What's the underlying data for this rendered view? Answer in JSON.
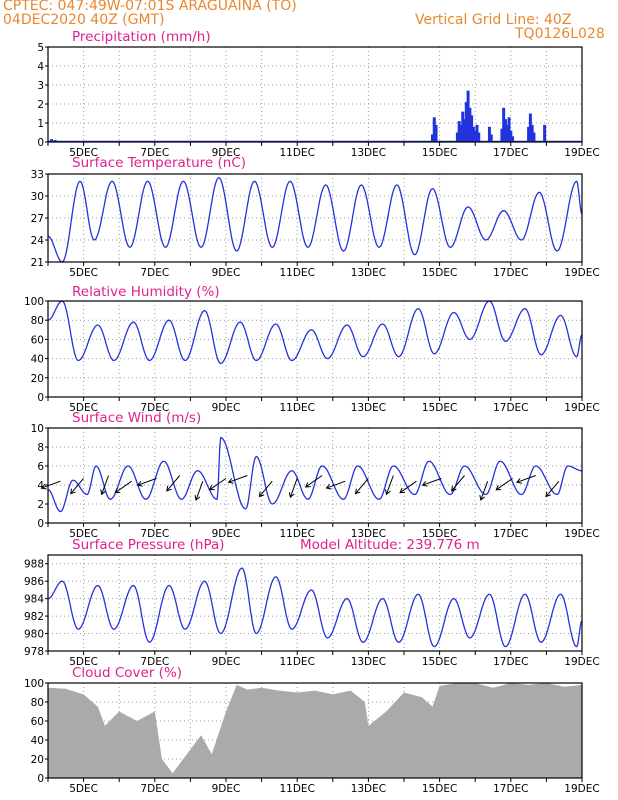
{
  "header": {
    "line1": "CPTEC:   047:49W-07:01S   ARAGUAINA (TO)",
    "line2_left": "04DEC2020 40Z (GMT)",
    "line2_right": "Vertical Grid Line: 40Z",
    "line3_right": "TQ0126L028"
  },
  "x_tick_labels": [
    "5DEC",
    "7DEC",
    "9DEC",
    "11DEC",
    "13DEC",
    "15DEC",
    "17DEC",
    "19DEC"
  ],
  "colors": {
    "line": "#2233dd",
    "bar": "#2233dd",
    "cloud": "#aaaaaa",
    "title": "#e0208f",
    "header": "#e8892e",
    "grid": "#9a9a9a"
  },
  "chart_data": [
    {
      "type": "bar",
      "title": "Precipitation (mm/h)",
      "ylim": [
        0,
        5
      ],
      "yticks": [
        0,
        1,
        2,
        3,
        4,
        5
      ],
      "x_unit": "day of December 2020",
      "xlim": [
        4.0,
        19.0
      ],
      "events": [
        {
          "x": 4.1,
          "value": 0.15
        },
        {
          "x": 4.2,
          "value": 0.1
        },
        {
          "x": 9.1,
          "value": 0.05
        },
        {
          "x": 14.8,
          "value": 0.4
        },
        {
          "x": 14.85,
          "value": 1.3
        },
        {
          "x": 14.9,
          "value": 0.9
        },
        {
          "x": 15.5,
          "value": 0.5
        },
        {
          "x": 15.55,
          "value": 1.1
        },
        {
          "x": 15.6,
          "value": 0.9
        },
        {
          "x": 15.65,
          "value": 1.6
        },
        {
          "x": 15.7,
          "value": 1.2
        },
        {
          "x": 15.75,
          "value": 2.1
        },
        {
          "x": 15.8,
          "value": 2.7
        },
        {
          "x": 15.85,
          "value": 1.8
        },
        {
          "x": 15.9,
          "value": 1.4
        },
        {
          "x": 15.95,
          "value": 0.8
        },
        {
          "x": 16.0,
          "value": 0.6
        },
        {
          "x": 16.05,
          "value": 0.9
        },
        {
          "x": 16.1,
          "value": 0.5
        },
        {
          "x": 16.4,
          "value": 0.8
        },
        {
          "x": 16.45,
          "value": 0.4
        },
        {
          "x": 16.75,
          "value": 0.7
        },
        {
          "x": 16.8,
          "value": 1.8
        },
        {
          "x": 16.85,
          "value": 1.2
        },
        {
          "x": 16.9,
          "value": 0.9
        },
        {
          "x": 16.95,
          "value": 1.3
        },
        {
          "x": 17.0,
          "value": 0.6
        },
        {
          "x": 17.05,
          "value": 0.3
        },
        {
          "x": 17.5,
          "value": 0.8
        },
        {
          "x": 17.55,
          "value": 1.5
        },
        {
          "x": 17.6,
          "value": 0.9
        },
        {
          "x": 17.65,
          "value": 0.5
        },
        {
          "x": 17.95,
          "value": 0.9
        }
      ]
    },
    {
      "type": "line",
      "title": "Surface Temperature (nC)",
      "ylim": [
        21,
        33
      ],
      "yticks": [
        21,
        24,
        27,
        30,
        33
      ],
      "x_unit": "day of December 2020",
      "xlim": [
        4.0,
        19.0
      ],
      "minima": [
        [
          4.0,
          24.5
        ],
        [
          4.4,
          21.0
        ],
        [
          5.3,
          24.0
        ],
        [
          6.3,
          23.0
        ],
        [
          7.3,
          23.0
        ],
        [
          8.3,
          23.0
        ],
        [
          9.3,
          22.5
        ],
        [
          10.3,
          23.0
        ],
        [
          11.3,
          23.0
        ],
        [
          12.3,
          22.5
        ],
        [
          13.3,
          23.0
        ],
        [
          14.3,
          22.0
        ],
        [
          15.3,
          23.0
        ],
        [
          16.3,
          24.0
        ],
        [
          17.3,
          24.0
        ],
        [
          18.3,
          22.5
        ],
        [
          19.0,
          27.5
        ]
      ],
      "maxima": [
        [
          4.9,
          32.0
        ],
        [
          5.8,
          32.0
        ],
        [
          6.8,
          32.0
        ],
        [
          7.8,
          32.0
        ],
        [
          8.8,
          32.5
        ],
        [
          9.8,
          32.0
        ],
        [
          10.8,
          32.0
        ],
        [
          11.8,
          31.5
        ],
        [
          12.8,
          31.5
        ],
        [
          13.8,
          31.5
        ],
        [
          14.8,
          31.0
        ],
        [
          15.8,
          28.5
        ],
        [
          16.8,
          28.0
        ],
        [
          17.8,
          30.5
        ],
        [
          18.85,
          32.0
        ]
      ]
    },
    {
      "type": "line",
      "title": "Relative Humidity (%)",
      "ylim": [
        0,
        100
      ],
      "yticks": [
        0,
        20,
        40,
        60,
        80,
        100
      ],
      "x_unit": "day of December 2020",
      "xlim": [
        4.0,
        19.0
      ],
      "minima": [
        [
          4.0,
          80.0
        ],
        [
          4.85,
          38.0
        ],
        [
          5.85,
          38.0
        ],
        [
          6.85,
          38.0
        ],
        [
          7.85,
          38.0
        ],
        [
          8.85,
          35.0
        ],
        [
          9.85,
          38.0
        ],
        [
          10.85,
          38.0
        ],
        [
          11.85,
          40.0
        ],
        [
          12.85,
          42.0
        ],
        [
          13.85,
          42.0
        ],
        [
          14.85,
          45.0
        ],
        [
          15.85,
          60.0
        ],
        [
          16.85,
          58.0
        ],
        [
          17.85,
          44.0
        ],
        [
          18.85,
          42.0
        ],
        [
          19.0,
          65.0
        ]
      ],
      "maxima": [
        [
          4.4,
          100.0
        ],
        [
          5.4,
          75.0
        ],
        [
          6.4,
          78.0
        ],
        [
          7.4,
          80.0
        ],
        [
          8.4,
          90.0
        ],
        [
          9.4,
          78.0
        ],
        [
          10.4,
          76.0
        ],
        [
          11.4,
          70.0
        ],
        [
          12.4,
          75.0
        ],
        [
          13.4,
          76.0
        ],
        [
          14.4,
          92.0
        ],
        [
          15.4,
          88.0
        ],
        [
          16.4,
          100.0
        ],
        [
          17.4,
          92.0
        ],
        [
          18.4,
          85.0
        ]
      ]
    },
    {
      "type": "line",
      "title": "Surface Wind (m/s)",
      "ylim": [
        0,
        10
      ],
      "yticks": [
        0,
        2,
        4,
        6,
        8,
        10
      ],
      "x_unit": "day of December 2020",
      "xlim": [
        4.0,
        19.0
      ],
      "minima": [
        [
          4.0,
          3.5
        ],
        [
          4.35,
          1.2
        ],
        [
          5.1,
          3.0
        ],
        [
          5.75,
          2.5
        ],
        [
          6.75,
          2.5
        ],
        [
          7.75,
          2.5
        ],
        [
          8.75,
          2.5
        ],
        [
          9.55,
          1.5
        ],
        [
          10.3,
          2.0
        ],
        [
          11.3,
          2.5
        ],
        [
          12.3,
          2.5
        ],
        [
          13.3,
          2.5
        ],
        [
          14.3,
          3.0
        ],
        [
          15.3,
          3.0
        ],
        [
          16.3,
          3.0
        ],
        [
          17.3,
          3.0
        ],
        [
          18.3,
          3.0
        ]
      ],
      "maxima": [
        [
          4.7,
          4.5
        ],
        [
          5.35,
          6.0
        ],
        [
          6.25,
          6.0
        ],
        [
          7.25,
          6.5
        ],
        [
          8.2,
          5.5
        ],
        [
          8.85,
          9.0
        ],
        [
          9.85,
          7.0
        ],
        [
          10.85,
          5.5
        ],
        [
          11.7,
          6.0
        ],
        [
          12.7,
          6.0
        ],
        [
          13.7,
          6.0
        ],
        [
          14.7,
          6.5
        ],
        [
          15.7,
          6.0
        ],
        [
          16.7,
          6.5
        ],
        [
          17.7,
          6.0
        ],
        [
          18.6,
          6.0
        ],
        [
          19.0,
          5.5
        ]
      ],
      "arrow_times": [
        4.35,
        5.0,
        5.7,
        6.35,
        7.05,
        7.7,
        8.35,
        9.0,
        9.6,
        10.3,
        11.0,
        11.7,
        12.35,
        13.0,
        13.7,
        14.35,
        15.05,
        15.7,
        16.35,
        17.05,
        17.7,
        18.35
      ],
      "arrow_directions_note": "wind barbs drawn in figure"
    },
    {
      "type": "line",
      "title": "Surface Pressure (hPa)",
      "annotation": "Model Altitude: 239.776 m",
      "ylim": [
        978,
        989
      ],
      "yticks": [
        978,
        980,
        982,
        984,
        986,
        988
      ],
      "x_unit": "day of December 2020",
      "xlim": [
        4.0,
        19.0
      ],
      "minima": [
        [
          4.0,
          984.0
        ],
        [
          4.85,
          980.5
        ],
        [
          5.85,
          980.5
        ],
        [
          6.85,
          979.0
        ],
        [
          7.85,
          980.5
        ],
        [
          8.85,
          980.0
        ],
        [
          9.85,
          980.0
        ],
        [
          10.85,
          980.5
        ],
        [
          11.85,
          979.5
        ],
        [
          12.85,
          979.0
        ],
        [
          13.85,
          979.0
        ],
        [
          14.85,
          978.5
        ],
        [
          15.85,
          979.5
        ],
        [
          16.85,
          978.5
        ],
        [
          17.85,
          979.0
        ],
        [
          18.85,
          978.5
        ],
        [
          19.0,
          981.5
        ]
      ],
      "maxima": [
        [
          4.4,
          986.0
        ],
        [
          5.4,
          985.5
        ],
        [
          6.4,
          985.5
        ],
        [
          7.4,
          985.5
        ],
        [
          8.4,
          986.0
        ],
        [
          9.45,
          987.5
        ],
        [
          10.4,
          986.5
        ],
        [
          11.4,
          985.0
        ],
        [
          12.4,
          984.0
        ],
        [
          13.4,
          984.0
        ],
        [
          14.4,
          984.5
        ],
        [
          15.4,
          984.0
        ],
        [
          16.4,
          984.5
        ],
        [
          17.4,
          984.5
        ],
        [
          18.4,
          984.5
        ]
      ]
    },
    {
      "type": "area",
      "title": "Cloud Cover (%)",
      "ylim": [
        0,
        100
      ],
      "yticks": [
        0,
        20,
        40,
        60,
        80,
        100
      ],
      "x_unit": "day of December 2020",
      "xlim": [
        4.0,
        19.0
      ],
      "x": [
        4.0,
        4.5,
        5.0,
        5.4,
        5.6,
        6.0,
        6.5,
        7.0,
        7.2,
        7.5,
        7.7,
        8.0,
        8.3,
        8.6,
        9.0,
        9.3,
        9.6,
        10.0,
        10.5,
        11.0,
        11.5,
        12.0,
        12.5,
        12.9,
        13.0,
        13.5,
        14.0,
        14.5,
        14.8,
        15.0,
        15.5,
        16.0,
        16.5,
        17.0,
        17.5,
        18.0,
        18.5,
        19.0
      ],
      "values": [
        95,
        94,
        88,
        75,
        55,
        70,
        60,
        70,
        20,
        5,
        15,
        30,
        45,
        25,
        70,
        98,
        93,
        95,
        92,
        90,
        92,
        88,
        92,
        80,
        55,
        70,
        90,
        85,
        75,
        97,
        100,
        100,
        95,
        100,
        98,
        100,
        96,
        98
      ]
    }
  ]
}
